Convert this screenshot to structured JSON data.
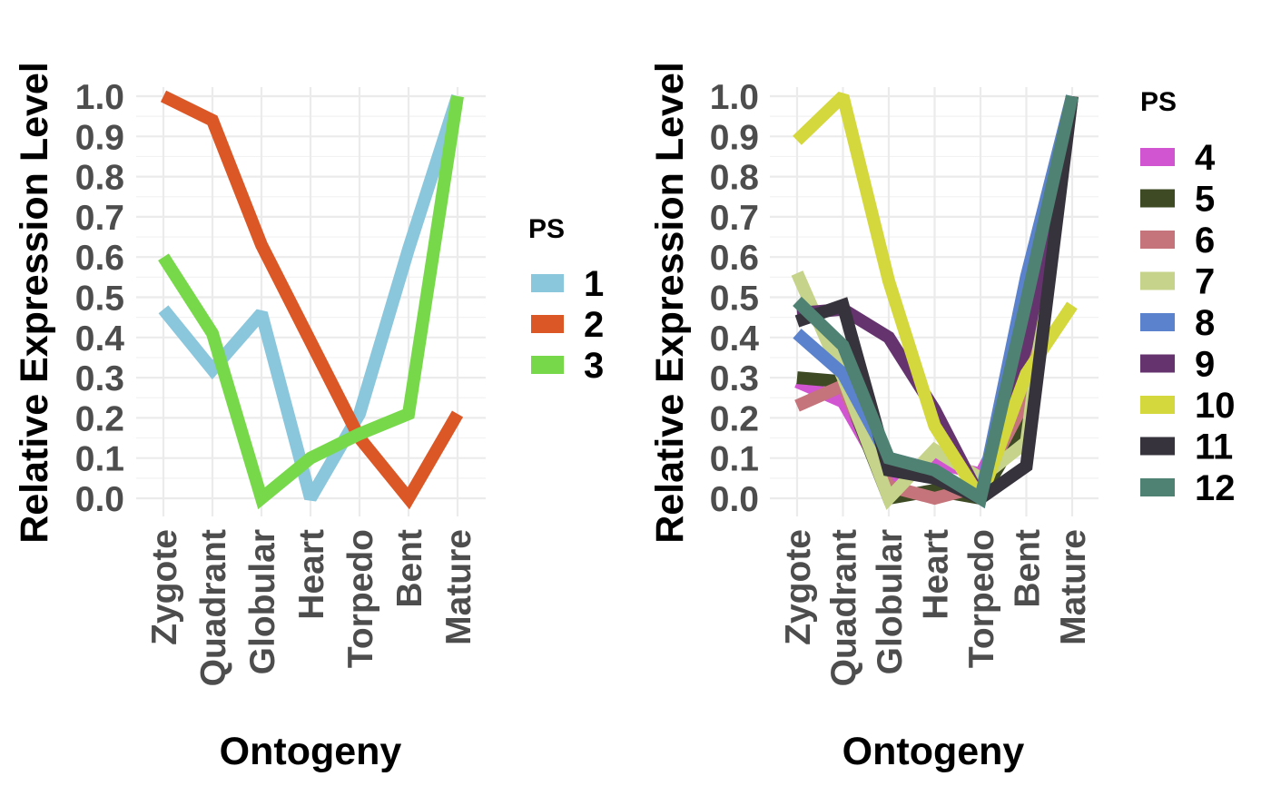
{
  "chart_data": [
    {
      "type": "line",
      "xlabel": "Ontogeny",
      "ylabel": "Relative Expression Level",
      "ylim": [
        0,
        1
      ],
      "yticks": [
        "0.0",
        "0.1",
        "0.2",
        "0.3",
        "0.4",
        "0.5",
        "0.6",
        "0.7",
        "0.8",
        "0.9",
        "1.0"
      ],
      "categories": [
        "Zygote",
        "Quadrant",
        "Globular",
        "Heart",
        "Torpedo",
        "Bent",
        "Mature"
      ],
      "grid": true,
      "legend": {
        "title": "PS",
        "placement": "right"
      },
      "series": [
        {
          "name": "1",
          "color": "#8ac6dc",
          "values": [
            0.47,
            0.32,
            0.46,
            0.0,
            0.21,
            0.62,
            1.0
          ]
        },
        {
          "name": "2",
          "color": "#db5726",
          "values": [
            1.0,
            0.94,
            0.63,
            0.39,
            0.15,
            0.0,
            0.21
          ]
        },
        {
          "name": "3",
          "color": "#77d94a",
          "values": [
            0.6,
            0.41,
            0.0,
            0.1,
            0.16,
            0.21,
            1.0
          ]
        }
      ]
    },
    {
      "type": "line",
      "xlabel": "Ontogeny",
      "ylabel": "Relative Expression Level",
      "ylim": [
        0,
        1
      ],
      "yticks": [
        "0.0",
        "0.1",
        "0.2",
        "0.3",
        "0.4",
        "0.5",
        "0.6",
        "0.7",
        "0.8",
        "0.9",
        "1.0"
      ],
      "categories": [
        "Zygote",
        "Quadrant",
        "Globular",
        "Heart",
        "Torpedo",
        "Bent",
        "Mature"
      ],
      "grid": true,
      "legend": {
        "title": "PS",
        "placement": "right"
      },
      "series": [
        {
          "name": "4",
          "color": "#d154d1",
          "values": [
            0.29,
            0.24,
            0.04,
            0.09,
            0.06,
            0.27,
            1.0
          ]
        },
        {
          "name": "5",
          "color": "#3d4a24",
          "values": [
            0.3,
            0.29,
            0.0,
            0.02,
            0.0,
            0.2,
            1.0
          ]
        },
        {
          "name": "6",
          "color": "#c4747a",
          "values": [
            0.23,
            0.28,
            0.03,
            0.0,
            0.03,
            0.25,
            1.0
          ]
        },
        {
          "name": "7",
          "color": "#c6d38a",
          "values": [
            0.56,
            0.3,
            0.0,
            0.12,
            0.05,
            0.14,
            1.0
          ]
        },
        {
          "name": "8",
          "color": "#5b82cc",
          "values": [
            0.41,
            0.31,
            0.1,
            0.07,
            0.0,
            0.55,
            1.0
          ]
        },
        {
          "name": "9",
          "color": "#65336e",
          "values": [
            0.46,
            0.47,
            0.4,
            0.22,
            0.0,
            0.38,
            1.0
          ]
        },
        {
          "name": "10",
          "color": "#d4d83c",
          "values": [
            0.89,
            1.0,
            0.54,
            0.18,
            0.0,
            0.31,
            0.48
          ]
        },
        {
          "name": "11",
          "color": "#36333c",
          "values": [
            0.44,
            0.48,
            0.07,
            0.05,
            0.0,
            0.08,
            1.0
          ]
        },
        {
          "name": "12",
          "color": "#4f8273",
          "values": [
            0.49,
            0.38,
            0.1,
            0.07,
            0.0,
            0.49,
            1.0
          ]
        }
      ]
    }
  ]
}
